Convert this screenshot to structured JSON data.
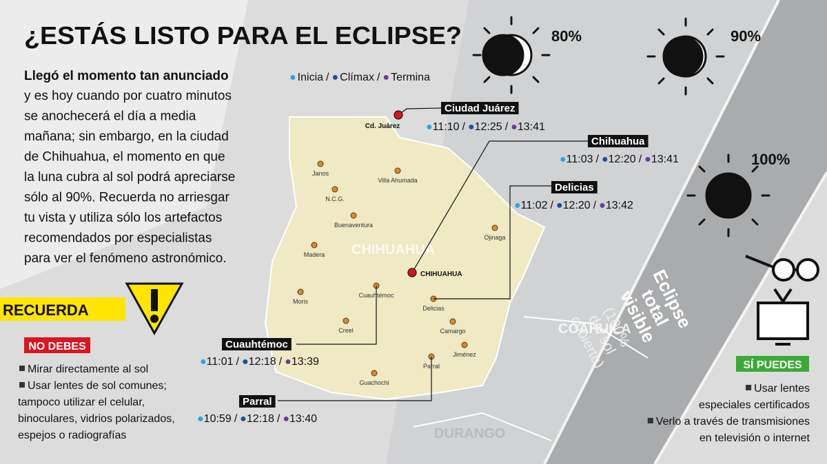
{
  "header": {
    "title": "¿ESTÁS LISTO PARA EL ECLIPSE?"
  },
  "intro": {
    "lead": "Llegó el momento tan anunciado",
    "lines": [
      "y es hoy cuando por cuatro minutos",
      "se anochecerá el día a media",
      "mañana; sin embargo, en la ciudad",
      "de Chihuahua, el momento en que",
      "la luna cubra al sol podrá apreciarse",
      "sólo al 90%. Recuerda no arriesgar",
      "tu  vista y utiliza sólo los artefactos",
      "recomendados por especialistas",
      "para ver el fenómeno astronómico."
    ]
  },
  "legend": {
    "items": [
      "Inicia",
      "Clímax",
      "Termina"
    ],
    "separator": "/"
  },
  "cities": [
    {
      "name": "Ciudad Juárez",
      "map_label": "Cd. Juárez",
      "times": [
        "11:10",
        "12:25",
        "13:41"
      ]
    },
    {
      "name": "Chihuahua",
      "map_label": "CHIHUAHUA",
      "times": [
        "11:03",
        "12:20",
        "13:41"
      ]
    },
    {
      "name": "Delicias",
      "times": [
        "11:02",
        "12:20",
        "13:42"
      ]
    },
    {
      "name": "Cuauhtémoc",
      "times": [
        "11:01",
        "12:18",
        "13:39"
      ]
    },
    {
      "name": "Parral",
      "times": [
        "10:59",
        "12:18",
        "13:40"
      ]
    }
  ],
  "towns": [
    "Janos",
    "Villa Ahumada",
    "N.C.G.",
    "Buenaventura",
    "Madera",
    "Ojinaga",
    "Moris",
    "Cuauhtémoc",
    "Delicias",
    "Camargo",
    "Creel",
    "Jiménez",
    "Parral",
    "Guachochi"
  ],
  "states": [
    "CHIHUAHUA",
    "COAHUILA",
    "DURANGO"
  ],
  "coverage": [
    "80%",
    "90%",
    "100%"
  ],
  "band": {
    "title": [
      "Eclipse",
      "total",
      "visible"
    ],
    "note": [
      "(100%",
      "del sol",
      "cubierto)"
    ]
  },
  "recuerda": {
    "title": "RECUERDA",
    "no_debes": {
      "title": "NO DEBES",
      "items": [
        [
          "Mirar directamente al sol"
        ],
        [
          "Usar lentes de sol comunes;",
          "tampoco utilizar el celular,",
          "binoculares, vidrios polarizados,",
          "espejos o radiografías"
        ]
      ]
    },
    "si_puedes": {
      "title": "SÍ PUEDES",
      "items": [
        [
          "Usar lentes",
          "especiales certificados"
        ],
        [
          "Verlo a través de transmisiones",
          "en televisión o internet"
        ]
      ]
    }
  }
}
